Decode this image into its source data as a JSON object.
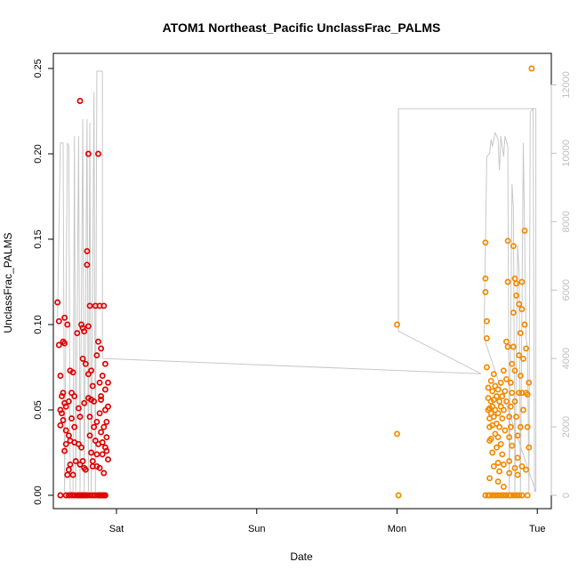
{
  "chart_data": {
    "type": "scatter",
    "title": "ATOM1 Northeast_Pacific UnclassFrac_PALMS",
    "xlabel": "Date",
    "ylabel": "UnclassFrac_PALMS",
    "x_ticks": [
      {
        "label": "Sat",
        "t": 1.0
      },
      {
        "label": "Sun",
        "t": 2.0
      },
      {
        "label": "Mon",
        "t": 3.0
      },
      {
        "label": "Tue",
        "t": 4.0
      }
    ],
    "xlim": [
      0.55,
      4.1
    ],
    "ylim": [
      0,
      0.25
    ],
    "y_ticks": [
      0.0,
      0.05,
      0.1,
      0.15,
      0.2,
      0.25
    ],
    "y_tick_labels": [
      "0.00",
      "0.05",
      "0.10",
      "0.15",
      "0.20",
      "0.25"
    ],
    "y2_ticks": [
      0,
      2000,
      4000,
      6000,
      8000,
      10000,
      12000
    ],
    "y2_tick_labels": [
      "0",
      "2000",
      "4000",
      "6000",
      "8000",
      "10000",
      "12000"
    ],
    "y2_lim": [
      0,
      12400
    ],
    "colors": {
      "series1": "#e00000",
      "series2": "#f28a00",
      "altitude_line": "#c8c8c8",
      "axis": "#000000",
      "right_axis": "#bebebe"
    },
    "series": [
      {
        "color": "#e00000",
        "points": [
          [
            0.58,
            0.113
          ],
          [
            0.59,
            0.102
          ],
          [
            0.59,
            0.088
          ],
          [
            0.6,
            0.07
          ],
          [
            0.6,
            0.05
          ],
          [
            0.61,
            0.058
          ],
          [
            0.6,
            0.041
          ],
          [
            0.61,
            0.048
          ],
          [
            0.62,
            0.09
          ],
          [
            0.62,
            0.06
          ],
          [
            0.63,
            0.089
          ],
          [
            0.63,
            0.104
          ],
          [
            0.64,
            0.052
          ],
          [
            0.62,
            0.044
          ],
          [
            0.63,
            0.054
          ],
          [
            0.64,
            0.038
          ],
          [
            0.64,
            0.03
          ],
          [
            0.63,
            0.026
          ],
          [
            0.65,
            0.1
          ],
          [
            0.66,
            0.055
          ],
          [
            0.66,
            0.035
          ],
          [
            0.67,
            0.032
          ],
          [
            0.67,
            0.073
          ],
          [
            0.68,
            0.06
          ],
          [
            0.68,
            0.045
          ],
          [
            0.67,
            0.018
          ],
          [
            0.69,
            0.072
          ],
          [
            0.7,
            0.058
          ],
          [
            0.7,
            0.04
          ],
          [
            0.7,
            0.031
          ],
          [
            0.71,
            0.02
          ],
          [
            0.66,
            0.015
          ],
          [
            0.65,
            0.012
          ],
          [
            0.72,
            0.095
          ],
          [
            0.73,
            0.03
          ],
          [
            0.73,
            0.051
          ],
          [
            0.74,
            0.046
          ],
          [
            0.75,
            0.1
          ],
          [
            0.75,
            0.028
          ],
          [
            0.76,
            0.098
          ],
          [
            0.76,
            0.08
          ],
          [
            0.76,
            0.02
          ],
          [
            0.77,
            0.096
          ],
          [
            0.77,
            0.054
          ],
          [
            0.78,
            0.077
          ],
          [
            0.78,
            0.015
          ],
          [
            0.79,
            0.143
          ],
          [
            0.79,
            0.135
          ],
          [
            0.8,
            0.071
          ],
          [
            0.8,
            0.099
          ],
          [
            0.8,
            0.057
          ],
          [
            0.81,
            0.111
          ],
          [
            0.81,
            0.046
          ],
          [
            0.81,
            0.035
          ],
          [
            0.82,
            0.025
          ],
          [
            0.82,
            0.056
          ],
          [
            0.82,
            0.073
          ],
          [
            0.83,
            0.064
          ],
          [
            0.83,
            0.02
          ],
          [
            0.84,
            0.04
          ],
          [
            0.84,
            0.055
          ],
          [
            0.85,
            0.032
          ],
          [
            0.85,
            0.111
          ],
          [
            0.86,
            0.082
          ],
          [
            0.86,
            0.043
          ],
          [
            0.86,
            0.024
          ],
          [
            0.87,
            0.09
          ],
          [
            0.87,
            0.03
          ],
          [
            0.88,
            0.111
          ],
          [
            0.88,
            0.066
          ],
          [
            0.88,
            0.048
          ],
          [
            0.89,
            0.086
          ],
          [
            0.89,
            0.058
          ],
          [
            0.89,
            0.037
          ],
          [
            0.9,
            0.07
          ],
          [
            0.9,
            0.024
          ],
          [
            0.91,
            0.04
          ],
          [
            0.91,
            0.111
          ],
          [
            0.91,
            0.013
          ],
          [
            0.92,
            0.077
          ],
          [
            0.92,
            0.062
          ],
          [
            0.92,
            0.05
          ],
          [
            0.93,
            0.043
          ],
          [
            0.93,
            0.026
          ],
          [
            0.93,
            0.034
          ],
          [
            0.94,
            0.052
          ],
          [
            0.94,
            0.066
          ],
          [
            0.94,
            0.021
          ],
          [
            0.92,
            0.028
          ],
          [
            0.88,
            0.016
          ],
          [
            0.86,
            0.017
          ],
          [
            0.83,
            0.017
          ],
          [
            0.69,
            0.012
          ],
          [
            0.74,
            0.018
          ],
          [
            0.77,
            0.016
          ],
          [
            0.74,
            0.231
          ],
          [
            0.8,
            0.2
          ],
          [
            0.87,
            0.2
          ],
          [
            0.89,
            0.056
          ],
          [
            0.9,
            0.031
          ],
          [
            0.6,
            0.0
          ],
          [
            0.64,
            0.0
          ],
          [
            0.66,
            0.0
          ],
          [
            0.68,
            0.0
          ],
          [
            0.7,
            0.0
          ],
          [
            0.72,
            0.0
          ],
          [
            0.73,
            0.0
          ],
          [
            0.74,
            0.0
          ],
          [
            0.75,
            0.0
          ],
          [
            0.76,
            0.0
          ],
          [
            0.77,
            0.0
          ],
          [
            0.78,
            0.0
          ],
          [
            0.79,
            0.0
          ],
          [
            0.81,
            0.0
          ],
          [
            0.83,
            0.0
          ],
          [
            0.85,
            0.0
          ],
          [
            0.87,
            0.0
          ],
          [
            0.88,
            0.0
          ],
          [
            0.89,
            0.0
          ],
          [
            0.9,
            0.0
          ],
          [
            0.91,
            0.0
          ],
          [
            0.92,
            0.0
          ]
        ]
      },
      {
        "color": "#f28a00",
        "points": [
          [
            3.0,
            0.1
          ],
          [
            3.0,
            0.036
          ],
          [
            3.01,
            0.0
          ],
          [
            3.63,
            0.148
          ],
          [
            3.63,
            0.127
          ],
          [
            3.63,
            0.119
          ],
          [
            3.64,
            0.102
          ],
          [
            3.64,
            0.092
          ],
          [
            3.64,
            0.075
          ],
          [
            3.65,
            0.063
          ],
          [
            3.65,
            0.057
          ],
          [
            3.65,
            0.05
          ],
          [
            3.66,
            0.051
          ],
          [
            3.66,
            0.045
          ],
          [
            3.66,
            0.04
          ],
          [
            3.66,
            0.032
          ],
          [
            3.67,
            0.067
          ],
          [
            3.67,
            0.055
          ],
          [
            3.67,
            0.048
          ],
          [
            3.67,
            0.033
          ],
          [
            3.68,
            0.061
          ],
          [
            3.68,
            0.052
          ],
          [
            3.68,
            0.041
          ],
          [
            3.68,
            0.025
          ],
          [
            3.69,
            0.071
          ],
          [
            3.69,
            0.056
          ],
          [
            3.69,
            0.046
          ],
          [
            3.7,
            0.064
          ],
          [
            3.7,
            0.05
          ],
          [
            3.7,
            0.036
          ],
          [
            3.71,
            0.058
          ],
          [
            3.71,
            0.042
          ],
          [
            3.71,
            0.028
          ],
          [
            3.72,
            0.062
          ],
          [
            3.72,
            0.048
          ],
          [
            3.72,
            0.034
          ],
          [
            3.72,
            0.019
          ],
          [
            3.73,
            0.055
          ],
          [
            3.73,
            0.04
          ],
          [
            3.74,
            0.066
          ],
          [
            3.74,
            0.052
          ],
          [
            3.74,
            0.03
          ],
          [
            3.75,
            0.058
          ],
          [
            3.75,
            0.045
          ],
          [
            3.75,
            0.024
          ],
          [
            3.76,
            0.073
          ],
          [
            3.76,
            0.05
          ],
          [
            3.77,
            0.061
          ],
          [
            3.77,
            0.038
          ],
          [
            3.78,
            0.09
          ],
          [
            3.78,
            0.068
          ],
          [
            3.78,
            0.055
          ],
          [
            3.79,
            0.149
          ],
          [
            3.79,
            0.125
          ],
          [
            3.79,
            0.087
          ],
          [
            3.8,
            0.046
          ],
          [
            3.8,
            0.034
          ],
          [
            3.8,
            0.02
          ],
          [
            3.81,
            0.066
          ],
          [
            3.81,
            0.052
          ],
          [
            3.81,
            0.04
          ],
          [
            3.82,
            0.077
          ],
          [
            3.82,
            0.06
          ],
          [
            3.82,
            0.029
          ],
          [
            3.83,
            0.146
          ],
          [
            3.83,
            0.107
          ],
          [
            3.83,
            0.087
          ],
          [
            3.84,
            0.127
          ],
          [
            3.84,
            0.073
          ],
          [
            3.84,
            0.055
          ],
          [
            3.85,
            0.124
          ],
          [
            3.85,
            0.117
          ],
          [
            3.85,
            0.046
          ],
          [
            3.86,
            0.035
          ],
          [
            3.86,
            0.022
          ],
          [
            3.87,
            0.112
          ],
          [
            3.87,
            0.082
          ],
          [
            3.87,
            0.06
          ],
          [
            3.88,
            0.095
          ],
          [
            3.88,
            0.07
          ],
          [
            3.88,
            0.04
          ],
          [
            3.89,
            0.125
          ],
          [
            3.89,
            0.109
          ],
          [
            3.89,
            0.06
          ],
          [
            3.9,
            0.08
          ],
          [
            3.9,
            0.05
          ],
          [
            3.91,
            0.155
          ],
          [
            3.91,
            0.1
          ],
          [
            3.92,
            0.086
          ],
          [
            3.92,
            0.06
          ],
          [
            3.93,
            0.059
          ],
          [
            3.93,
            0.04
          ],
          [
            3.94,
            0.066
          ],
          [
            3.94,
            0.028
          ],
          [
            3.96,
            0.25
          ],
          [
            3.69,
            0.017
          ],
          [
            3.73,
            0.014
          ],
          [
            3.76,
            0.018
          ],
          [
            3.8,
            0.013
          ],
          [
            3.84,
            0.016
          ],
          [
            3.86,
            0.012
          ],
          [
            3.76,
            0.005
          ],
          [
            3.89,
            0.017
          ],
          [
            3.66,
            0.01
          ],
          [
            3.72,
            0.008
          ],
          [
            3.92,
            0.015
          ],
          [
            3.63,
            0.0
          ],
          [
            3.65,
            0.0
          ],
          [
            3.66,
            0.0
          ],
          [
            3.68,
            0.0
          ],
          [
            3.7,
            0.0
          ],
          [
            3.72,
            0.0
          ],
          [
            3.74,
            0.0
          ],
          [
            3.76,
            0.0
          ],
          [
            3.78,
            0.0
          ],
          [
            3.8,
            0.0
          ],
          [
            3.81,
            0.0
          ],
          [
            3.83,
            0.0
          ],
          [
            3.85,
            0.0
          ],
          [
            3.87,
            0.0
          ],
          [
            3.89,
            0.0
          ],
          [
            3.93,
            0.0
          ]
        ]
      }
    ],
    "altitude_trace": [
      [
        0.58,
        5200
      ],
      [
        0.6,
        10300
      ],
      [
        0.62,
        10300
      ],
      [
        0.63,
        100
      ],
      [
        0.65,
        10300
      ],
      [
        0.66,
        10200
      ],
      [
        0.67,
        100
      ],
      [
        0.69,
        100
      ],
      [
        0.7,
        10500
      ],
      [
        0.71,
        100
      ],
      [
        0.73,
        10500
      ],
      [
        0.74,
        100
      ],
      [
        0.76,
        11000
      ],
      [
        0.77,
        100
      ],
      [
        0.79,
        11000
      ],
      [
        0.8,
        100
      ],
      [
        0.81,
        10900
      ],
      [
        0.82,
        100
      ],
      [
        0.84,
        11800
      ],
      [
        0.85,
        100
      ],
      [
        0.86,
        12400
      ],
      [
        0.88,
        12400
      ],
      [
        0.89,
        12400
      ],
      [
        0.9,
        12400
      ],
      [
        0.9,
        4000
      ],
      [
        3.6,
        3550
      ],
      [
        3.01,
        4800
      ],
      [
        3.01,
        11300
      ],
      [
        3.01,
        11300
      ],
      [
        3.99,
        11300
      ],
      [
        3.99,
        100
      ],
      [
        3.62,
        4600
      ],
      [
        3.64,
        9900
      ],
      [
        3.66,
        10000
      ],
      [
        3.67,
        10400
      ],
      [
        3.68,
        10200
      ],
      [
        3.7,
        10600
      ],
      [
        3.72,
        10400
      ],
      [
        3.73,
        9500
      ],
      [
        3.74,
        10500
      ],
      [
        3.76,
        9900
      ],
      [
        3.77,
        10500
      ],
      [
        3.79,
        10200
      ],
      [
        3.8,
        100
      ],
      [
        3.82,
        9100
      ],
      [
        3.83,
        8400
      ],
      [
        3.84,
        100
      ],
      [
        3.86,
        7300
      ],
      [
        3.87,
        6600
      ],
      [
        3.88,
        100
      ],
      [
        3.9,
        10300
      ],
      [
        3.92,
        4600
      ],
      [
        3.93,
        4300
      ],
      [
        3.94,
        100
      ],
      [
        3.95,
        11200
      ],
      [
        3.97,
        11300
      ],
      [
        3.98,
        100
      ]
    ]
  }
}
